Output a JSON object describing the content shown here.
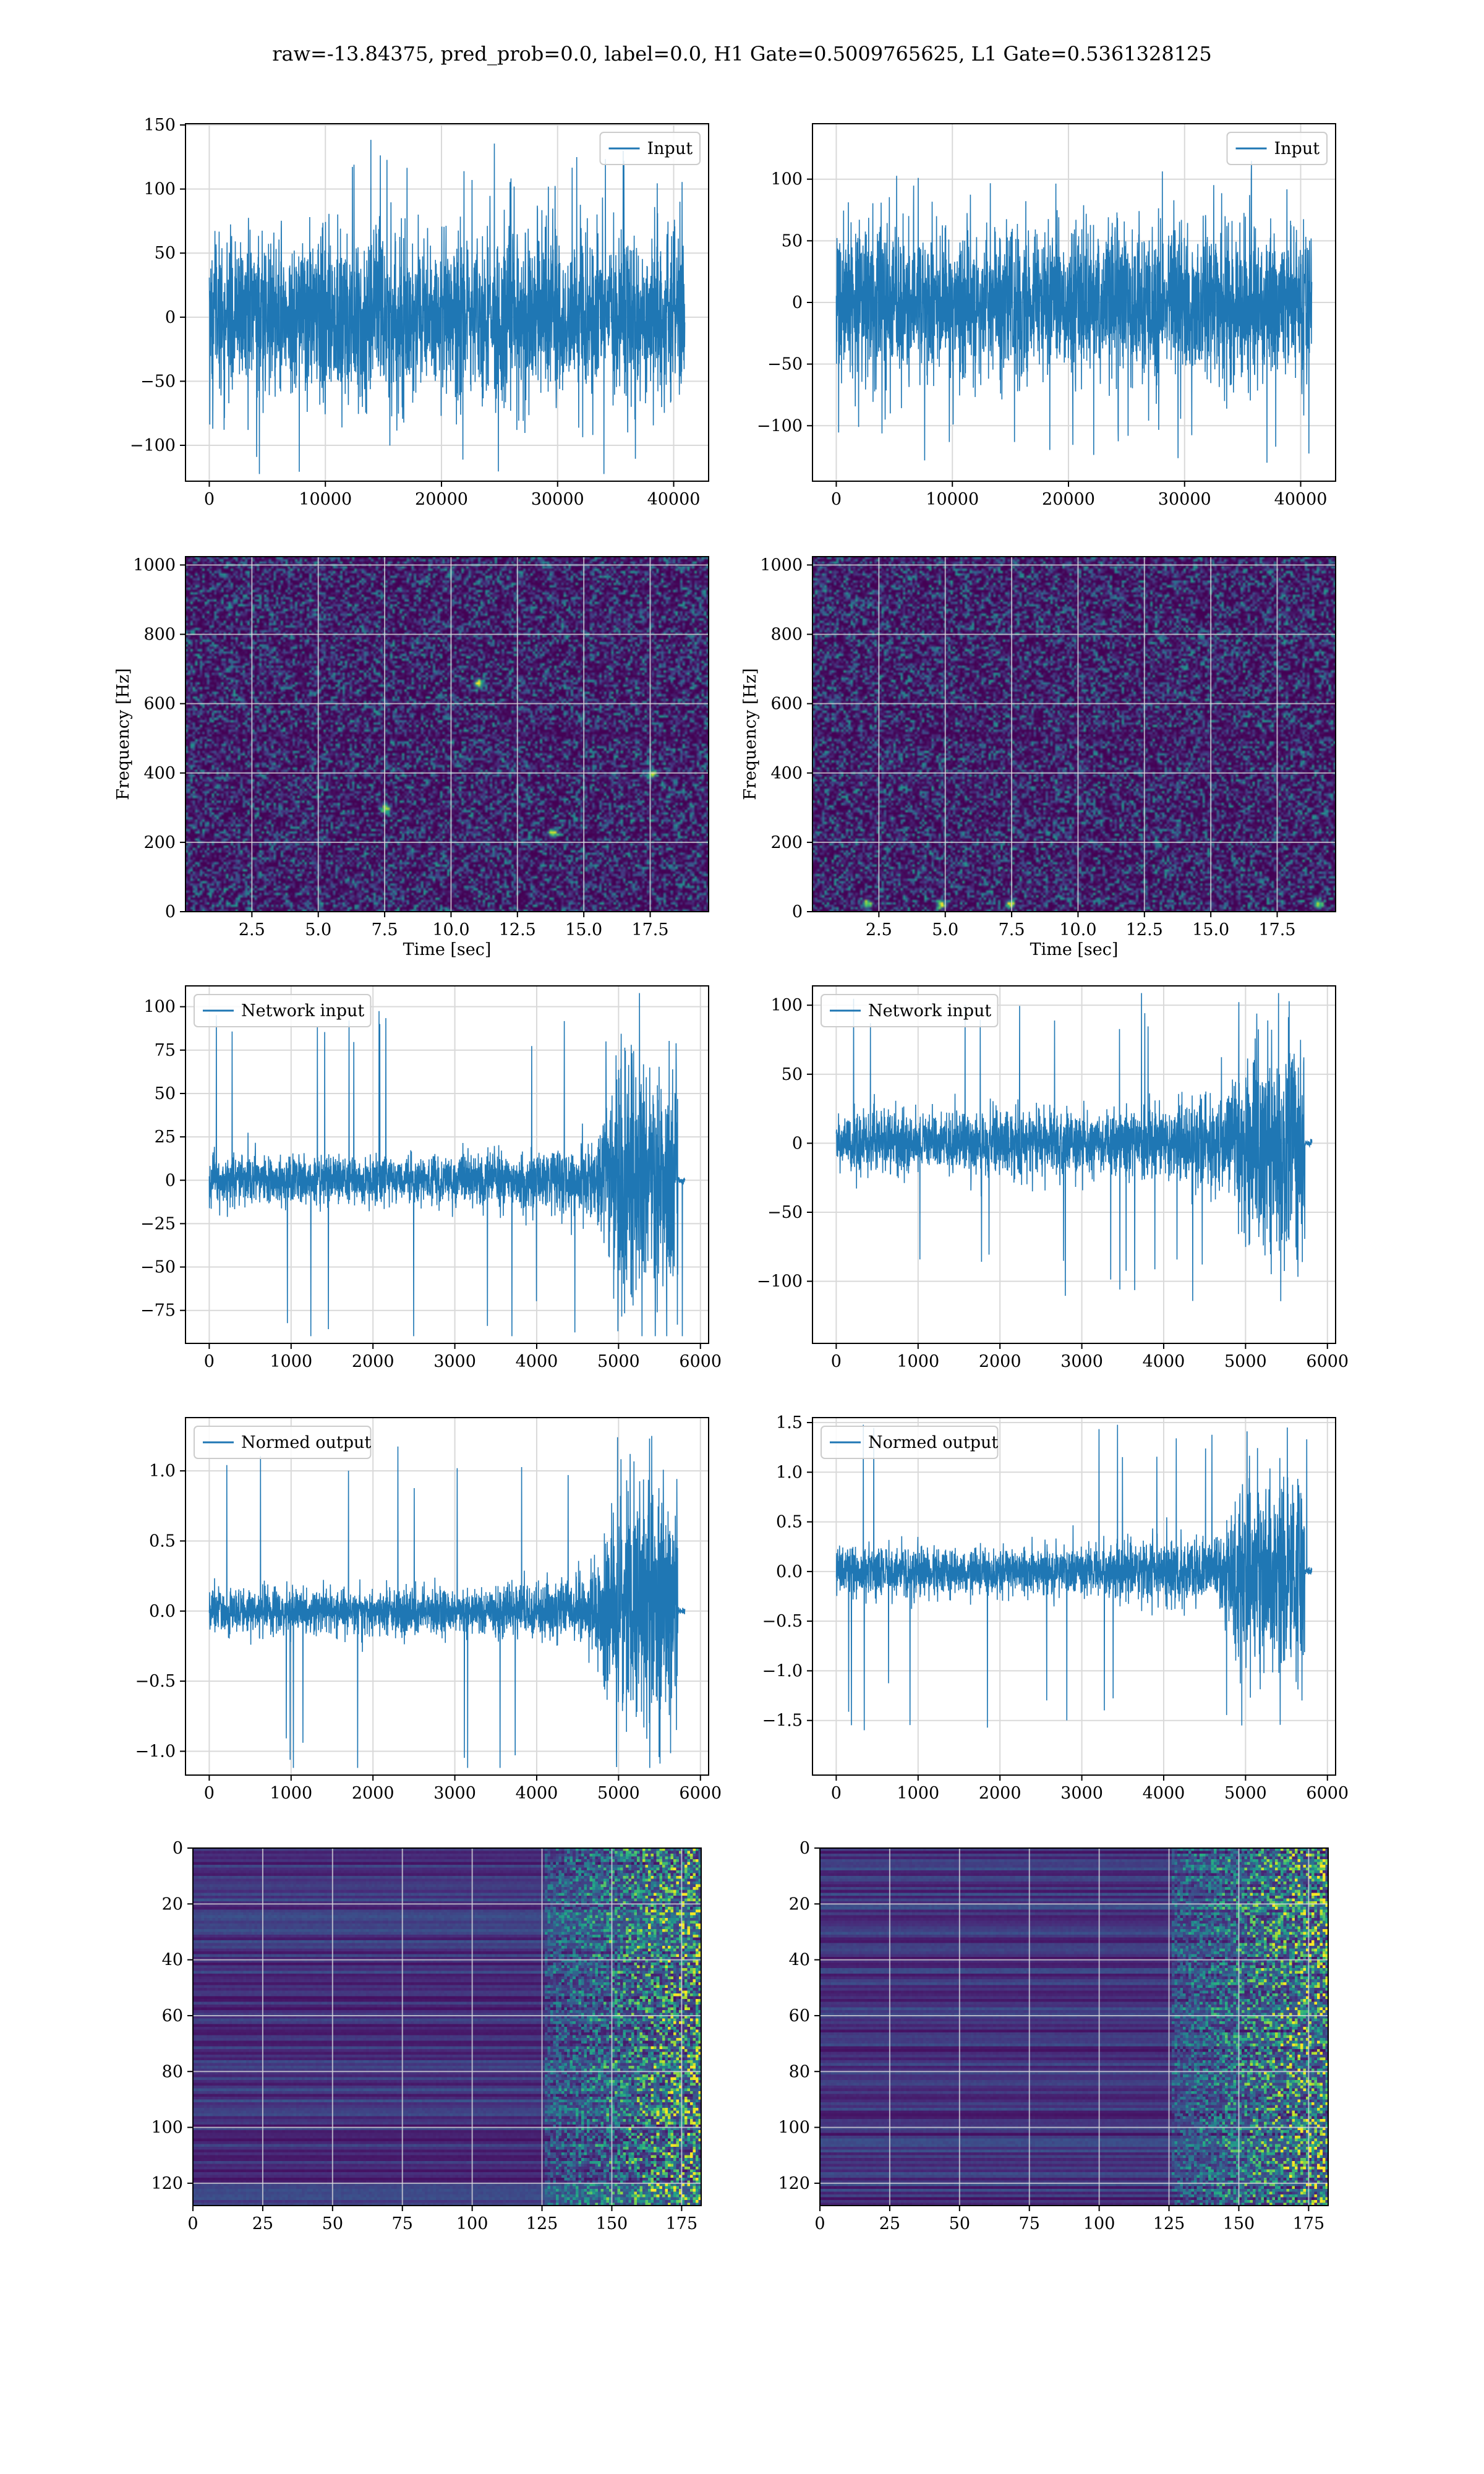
{
  "figure": {
    "suptitle": "raw=-13.84375, pred_prob=0.0, label=0.0, H1 Gate=0.5009765625, L1 Gate=0.5361328125",
    "line_color": "#1f77b4"
  },
  "chart_data": [
    {
      "id": "r1c1",
      "type": "line",
      "title": "",
      "series": [
        {
          "name": "Input",
          "n": 40960,
          "amp": 32,
          "spike": 140
        }
      ],
      "xlim": [
        -2048,
        43008
      ],
      "ylim": [
        -128,
        151
      ],
      "xticks": [
        0,
        10000,
        20000,
        30000,
        40000
      ],
      "xtick_labels": [
        "0",
        "10000",
        "20000",
        "30000",
        "40000"
      ],
      "yticks": [
        -100,
        -50,
        0,
        50,
        100,
        150
      ],
      "ytick_labels": [
        "−100",
        "−50",
        "0",
        "50",
        "100",
        "150"
      ],
      "xlabel": "",
      "ylabel": "",
      "legend": "upper right",
      "grid": true,
      "envelope": "stationary"
    },
    {
      "id": "r1c2",
      "type": "line",
      "title": "",
      "series": [
        {
          "name": "Input",
          "n": 40960,
          "amp": 31,
          "spike": 130
        }
      ],
      "xlim": [
        -2048,
        43008
      ],
      "ylim": [
        -145,
        145
      ],
      "xticks": [
        0,
        10000,
        20000,
        30000,
        40000
      ],
      "xtick_labels": [
        "0",
        "10000",
        "20000",
        "30000",
        "40000"
      ],
      "yticks": [
        -100,
        -50,
        0,
        50,
        100
      ],
      "ytick_labels": [
        "−100",
        "−50",
        "0",
        "50",
        "100"
      ],
      "xlabel": "",
      "ylabel": "",
      "legend": "upper right",
      "grid": true,
      "envelope": "stationary"
    },
    {
      "id": "r2c1",
      "type": "heatmap",
      "title": "",
      "xlim": [
        0,
        19.7
      ],
      "ylim": [
        0,
        1024
      ],
      "xticks": [
        2.5,
        5.0,
        7.5,
        10.0,
        12.5,
        15.0,
        17.5
      ],
      "xtick_labels": [
        "2.5",
        "5.0",
        "7.5",
        "10.0",
        "12.5",
        "15.0",
        "17.5"
      ],
      "yticks": [
        0,
        200,
        400,
        600,
        800,
        1000
      ],
      "ytick_labels": [
        "0",
        "200",
        "400",
        "600",
        "800",
        "1000"
      ],
      "xlabel": "Time [sec]",
      "ylabel": "Frequency [Hz]",
      "grid": true,
      "colormap": "viridis",
      "hot_spots": [
        [
          7.5,
          300
        ],
        [
          13.8,
          230
        ],
        [
          17.5,
          400
        ],
        [
          11.0,
          660
        ]
      ]
    },
    {
      "id": "r2c2",
      "type": "heatmap",
      "title": "",
      "xlim": [
        0,
        19.7
      ],
      "ylim": [
        0,
        1024
      ],
      "xticks": [
        2.5,
        5.0,
        7.5,
        10.0,
        12.5,
        15.0,
        17.5
      ],
      "xtick_labels": [
        "2.5",
        "5.0",
        "7.5",
        "10.0",
        "12.5",
        "15.0",
        "17.5"
      ],
      "yticks": [
        0,
        200,
        400,
        600,
        800,
        1000
      ],
      "ytick_labels": [
        "0",
        "200",
        "400",
        "600",
        "800",
        "1000"
      ],
      "xlabel": "Time [sec]",
      "ylabel": "Frequency [Hz]",
      "grid": true,
      "colormap": "viridis",
      "hot_spots": [
        [
          2.0,
          25
        ],
        [
          4.8,
          25
        ],
        [
          7.4,
          25
        ],
        [
          19.0,
          25
        ]
      ]
    },
    {
      "id": "r3c1",
      "type": "line",
      "title": "",
      "series": [
        {
          "name": "Network input",
          "n": 5810,
          "amp": 7,
          "peak": 35,
          "spike": 98
        }
      ],
      "xlim": [
        -290,
        6100
      ],
      "ylim": [
        -94,
        112
      ],
      "xticks": [
        0,
        1000,
        2000,
        3000,
        4000,
        5000,
        6000
      ],
      "xtick_labels": [
        "0",
        "1000",
        "2000",
        "3000",
        "4000",
        "5000",
        "6000"
      ],
      "yticks": [
        -75,
        -50,
        -25,
        0,
        25,
        50,
        75,
        100
      ],
      "ytick_labels": [
        "−75",
        "−50",
        "−25",
        "0",
        "25",
        "50",
        "75",
        "100"
      ],
      "xlabel": "",
      "ylabel": "",
      "legend": "upper left",
      "grid": true,
      "envelope": "chirp"
    },
    {
      "id": "r3c2",
      "type": "line",
      "title": "",
      "series": [
        {
          "name": "Network input",
          "n": 5810,
          "amp": 11,
          "peak": 38,
          "spike": 115
        }
      ],
      "xlim": [
        -290,
        6100
      ],
      "ylim": [
        -145,
        114
      ],
      "xticks": [
        0,
        1000,
        2000,
        3000,
        4000,
        5000,
        6000
      ],
      "xtick_labels": [
        "0",
        "1000",
        "2000",
        "3000",
        "4000",
        "5000",
        "6000"
      ],
      "yticks": [
        -100,
        -50,
        0,
        50,
        100
      ],
      "ytick_labels": [
        "−100",
        "−50",
        "0",
        "50",
        "100"
      ],
      "xlabel": "",
      "ylabel": "",
      "legend": "upper left",
      "grid": true,
      "envelope": "chirp"
    },
    {
      "id": "r4c1",
      "type": "line",
      "title": "",
      "series": [
        {
          "name": "Normed output",
          "n": 5810,
          "amp": 0.08,
          "peak": 0.45,
          "spike": 1.25
        }
      ],
      "xlim": [
        -290,
        6100
      ],
      "ylim": [
        -1.17,
        1.38
      ],
      "xticks": [
        0,
        1000,
        2000,
        3000,
        4000,
        5000,
        6000
      ],
      "xtick_labels": [
        "0",
        "1000",
        "2000",
        "3000",
        "4000",
        "5000",
        "6000"
      ],
      "yticks": [
        -1.0,
        -0.5,
        0.0,
        0.5,
        1.0
      ],
      "ytick_labels": [
        "−1.0",
        "−0.5",
        "0.0",
        "0.5",
        "1.0"
      ],
      "xlabel": "",
      "ylabel": "",
      "legend": "upper left",
      "grid": true,
      "envelope": "chirp"
    },
    {
      "id": "r4c2",
      "type": "line",
      "title": "",
      "series": [
        {
          "name": "Normed output",
          "n": 5810,
          "amp": 0.12,
          "peak": 0.5,
          "spike": 1.6
        }
      ],
      "xlim": [
        -290,
        6100
      ],
      "ylim": [
        -2.05,
        1.55
      ],
      "xticks": [
        0,
        1000,
        2000,
        3000,
        4000,
        5000,
        6000
      ],
      "xtick_labels": [
        "0",
        "1000",
        "2000",
        "3000",
        "4000",
        "5000",
        "6000"
      ],
      "yticks": [
        -1.5,
        -1.0,
        -0.5,
        0.0,
        0.5,
        1.0,
        1.5
      ],
      "ytick_labels": [
        "−1.5",
        "−1.0",
        "−0.5",
        "0.0",
        "0.5",
        "1.0",
        "1.5"
      ],
      "xlabel": "",
      "ylabel": "",
      "legend": "upper left",
      "grid": true,
      "envelope": "chirp"
    },
    {
      "id": "r5c1",
      "type": "heatmap",
      "title": "",
      "xlim": [
        0,
        182
      ],
      "ylim": [
        128,
        0
      ],
      "xticks": [
        0,
        25,
        50,
        75,
        100,
        125,
        150,
        175
      ],
      "xtick_labels": [
        "0",
        "25",
        "50",
        "75",
        "100",
        "125",
        "150",
        "175"
      ],
      "yticks": [
        0,
        20,
        40,
        60,
        80,
        100,
        120
      ],
      "ytick_labels": [
        "0",
        "20",
        "40",
        "60",
        "80",
        "100",
        "120"
      ],
      "xlabel": "",
      "ylabel": "",
      "grid": true,
      "colormap": "viridis",
      "rows": 128,
      "cols": 182
    },
    {
      "id": "r5c2",
      "type": "heatmap",
      "title": "",
      "xlim": [
        0,
        182
      ],
      "ylim": [
        128,
        0
      ],
      "xticks": [
        0,
        25,
        50,
        75,
        100,
        125,
        150,
        175
      ],
      "xtick_labels": [
        "0",
        "25",
        "50",
        "75",
        "100",
        "125",
        "150",
        "175"
      ],
      "yticks": [
        0,
        20,
        40,
        60,
        80,
        100,
        120
      ],
      "ytick_labels": [
        "0",
        "20",
        "40",
        "60",
        "80",
        "100",
        "120"
      ],
      "xlabel": "",
      "ylabel": "",
      "grid": true,
      "colormap": "viridis",
      "rows": 128,
      "cols": 182
    }
  ]
}
